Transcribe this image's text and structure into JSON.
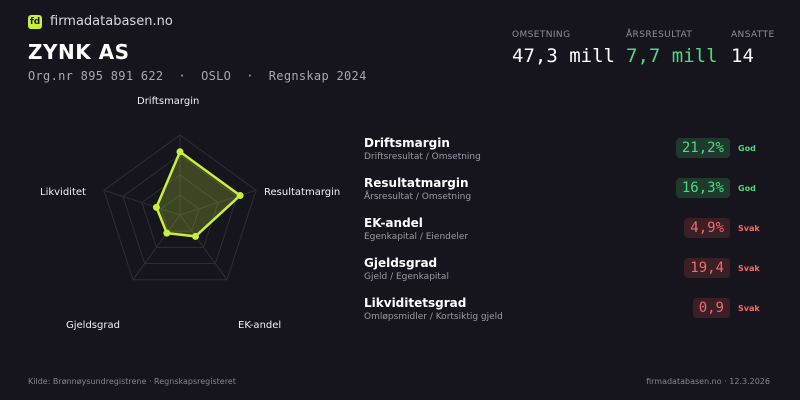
{
  "brand": {
    "logo_text": "fd",
    "name": "firmadatabasen.no"
  },
  "company": {
    "name": "ZYNK AS",
    "subline": "Org.nr 895 891 622  ·  OSLO  ·  Regnskap 2024"
  },
  "kpis": [
    {
      "label": "OMSETNING",
      "value": "47,3 mill"
    },
    {
      "label": "ÅRSRESULTAT",
      "value": "7,7 mill"
    },
    {
      "label": "ANSATTE",
      "value": "14"
    }
  ],
  "colors": {
    "background": "#16151d",
    "accent": "#c8f036",
    "good": "#4cd981",
    "weak": "#f16b6b"
  },
  "radar": {
    "axes": [
      "Driftsmargin",
      "Resultatmargin",
      "EK-andel",
      "Gjeldsgrad",
      "Likviditet"
    ],
    "scores": [
      0.79,
      0.79,
      0.33,
      0.28,
      0.31
    ],
    "rings": 4
  },
  "metrics": [
    {
      "title": "Driftsmargin",
      "desc": "Driftsresultat / Omsetning",
      "value": "21,2%",
      "status": "God",
      "kind": "good"
    },
    {
      "title": "Resultatmargin",
      "desc": "Årsresultat / Omsetning",
      "value": "16,3%",
      "status": "God",
      "kind": "good"
    },
    {
      "title": "EK-andel",
      "desc": "Egenkapital / Eiendeler",
      "value": "4,9%",
      "status": "Svak",
      "kind": "weak"
    },
    {
      "title": "Gjeldsgrad",
      "desc": "Gjeld / Egenkapital",
      "value": "19,4",
      "status": "Svak",
      "kind": "weak"
    },
    {
      "title": "Likviditetsgrad",
      "desc": "Omløpsmidler / Kortsiktig gjeld",
      "value": "0,9",
      "status": "Svak",
      "kind": "weak"
    }
  ],
  "footer": {
    "source": "Kilde: Brønnøysundregistrene · Regnskapsregisteret",
    "site_date": "firmadatabasen.no · 12.3.2026"
  }
}
